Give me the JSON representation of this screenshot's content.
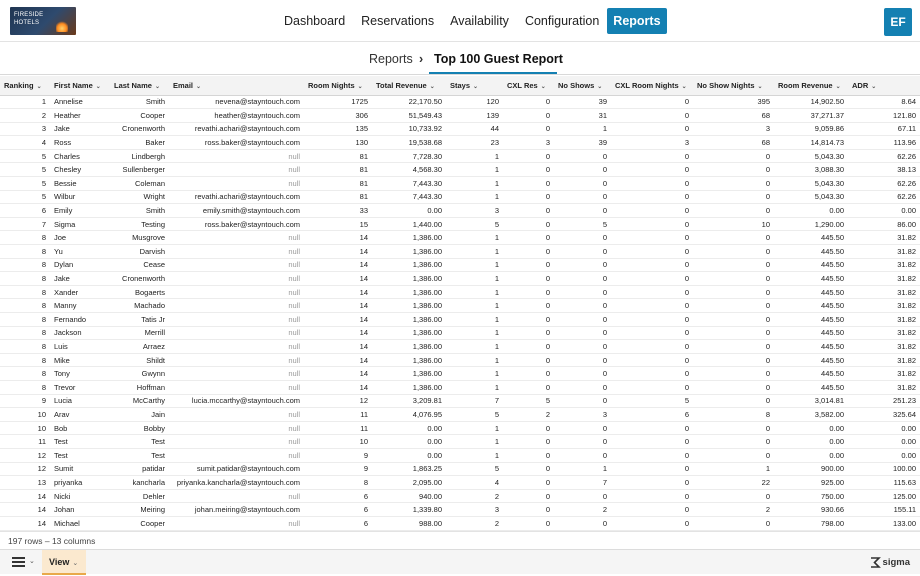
{
  "logo": {
    "line1": "FIRESIDE",
    "line2": "HOTELS"
  },
  "nav": [
    {
      "label": "Dashboard",
      "active": false
    },
    {
      "label": "Reservations",
      "active": false
    },
    {
      "label": "Availability",
      "active": false
    },
    {
      "label": "Configuration",
      "active": false
    },
    {
      "label": "Reports",
      "active": true
    }
  ],
  "user": {
    "initials": "EF"
  },
  "breadcrumb": {
    "parent": "Reports",
    "separator": "›",
    "current": "Top 100 Guest Report"
  },
  "table": {
    "columns": [
      {
        "label": "Ranking",
        "align": "left"
      },
      {
        "label": "First Name",
        "align": "left"
      },
      {
        "label": "Last Name",
        "align": "left"
      },
      {
        "label": "Email",
        "align": "left"
      },
      {
        "label": "Room Nights",
        "align": "left"
      },
      {
        "label": "Total Revenue",
        "align": "left"
      },
      {
        "label": "Stays",
        "align": "left"
      },
      {
        "label": "CXL Res",
        "align": "left"
      },
      {
        "label": "No Shows",
        "align": "left"
      },
      {
        "label": "CXL Room Nights",
        "align": "left"
      },
      {
        "label": "No Show Nights",
        "align": "left"
      },
      {
        "label": "Room Revenue",
        "align": "left"
      },
      {
        "label": "ADR",
        "align": "left"
      }
    ],
    "rows": [
      [
        "1",
        "Annelise",
        "Smith",
        "nevena@stayntouch.com",
        "1725",
        "22,170.50",
        "120",
        "0",
        "39",
        "0",
        "395",
        "14,902.50",
        "8.64"
      ],
      [
        "2",
        "Heather",
        "Cooper",
        "heather@stayntouch.com",
        "306",
        "51,549.43",
        "139",
        "0",
        "31",
        "0",
        "68",
        "37,271.37",
        "121.80"
      ],
      [
        "3",
        "Jake",
        "Cronenworth",
        "revathi.achari@stayntouch.com",
        "135",
        "10,733.92",
        "44",
        "0",
        "1",
        "0",
        "3",
        "9,059.86",
        "67.11"
      ],
      [
        "4",
        "Ross",
        "Baker",
        "ross.baker@stayntouch.com",
        "130",
        "19,538.68",
        "23",
        "3",
        "39",
        "3",
        "68",
        "14,814.73",
        "113.96"
      ],
      [
        "5",
        "Charles",
        "Lindbergh",
        "null",
        "81",
        "7,728.30",
        "1",
        "0",
        "0",
        "0",
        "0",
        "5,043.30",
        "62.26"
      ],
      [
        "5",
        "Chesley",
        "Sullenberger",
        "null",
        "81",
        "4,568.30",
        "1",
        "0",
        "0",
        "0",
        "0",
        "3,088.30",
        "38.13"
      ],
      [
        "5",
        "Bessie",
        "Coleman",
        "null",
        "81",
        "7,443.30",
        "1",
        "0",
        "0",
        "0",
        "0",
        "5,043.30",
        "62.26"
      ],
      [
        "5",
        "Wilbur",
        "Wright",
        "revathi.achari@stayntouch.com",
        "81",
        "7,443.30",
        "1",
        "0",
        "0",
        "0",
        "0",
        "5,043.30",
        "62.26"
      ],
      [
        "6",
        "Emily",
        "Smith",
        "emily.smith@stayntouch.com",
        "33",
        "0.00",
        "3",
        "0",
        "0",
        "0",
        "0",
        "0.00",
        "0.00"
      ],
      [
        "7",
        "Sigma",
        "Testing",
        "ross.baker@stayntouch.com",
        "15",
        "1,440.00",
        "5",
        "0",
        "5",
        "0",
        "10",
        "1,290.00",
        "86.00"
      ],
      [
        "8",
        "Joe",
        "Musgrove",
        "null",
        "14",
        "1,386.00",
        "1",
        "0",
        "0",
        "0",
        "0",
        "445.50",
        "31.82"
      ],
      [
        "8",
        "Yu",
        "Darvish",
        "null",
        "14",
        "1,386.00",
        "1",
        "0",
        "0",
        "0",
        "0",
        "445.50",
        "31.82"
      ],
      [
        "8",
        "Dylan",
        "Cease",
        "null",
        "14",
        "1,386.00",
        "1",
        "0",
        "0",
        "0",
        "0",
        "445.50",
        "31.82"
      ],
      [
        "8",
        "Jake",
        "Cronenworth",
        "null",
        "14",
        "1,386.00",
        "1",
        "0",
        "0",
        "0",
        "0",
        "445.50",
        "31.82"
      ],
      [
        "8",
        "Xander",
        "Bogaerts",
        "null",
        "14",
        "1,386.00",
        "1",
        "0",
        "0",
        "0",
        "0",
        "445.50",
        "31.82"
      ],
      [
        "8",
        "Manny",
        "Machado",
        "null",
        "14",
        "1,386.00",
        "1",
        "0",
        "0",
        "0",
        "0",
        "445.50",
        "31.82"
      ],
      [
        "8",
        "Fernando",
        "Tatis Jr",
        "null",
        "14",
        "1,386.00",
        "1",
        "0",
        "0",
        "0",
        "0",
        "445.50",
        "31.82"
      ],
      [
        "8",
        "Jackson",
        "Merrill",
        "null",
        "14",
        "1,386.00",
        "1",
        "0",
        "0",
        "0",
        "0",
        "445.50",
        "31.82"
      ],
      [
        "8",
        "Luis",
        "Arraez",
        "null",
        "14",
        "1,386.00",
        "1",
        "0",
        "0",
        "0",
        "0",
        "445.50",
        "31.82"
      ],
      [
        "8",
        "Mike",
        "Shildt",
        "null",
        "14",
        "1,386.00",
        "1",
        "0",
        "0",
        "0",
        "0",
        "445.50",
        "31.82"
      ],
      [
        "8",
        "Tony",
        "Gwynn",
        "null",
        "14",
        "1,386.00",
        "1",
        "0",
        "0",
        "0",
        "0",
        "445.50",
        "31.82"
      ],
      [
        "8",
        "Trevor",
        "Hoffman",
        "null",
        "14",
        "1,386.00",
        "1",
        "0",
        "0",
        "0",
        "0",
        "445.50",
        "31.82"
      ],
      [
        "9",
        "Lucia",
        "McCarthy",
        "lucia.mccarthy@stayntouch.com",
        "12",
        "3,209.81",
        "7",
        "5",
        "0",
        "5",
        "0",
        "3,014.81",
        "251.23"
      ],
      [
        "10",
        "Arav",
        "Jain",
        "null",
        "11",
        "4,076.95",
        "5",
        "2",
        "3",
        "6",
        "8",
        "3,582.00",
        "325.64"
      ],
      [
        "10",
        "Bob",
        "Bobby",
        "null",
        "11",
        "0.00",
        "1",
        "0",
        "0",
        "0",
        "0",
        "0.00",
        "0.00"
      ],
      [
        "11",
        "Test",
        "Test",
        "null",
        "10",
        "0.00",
        "1",
        "0",
        "0",
        "0",
        "0",
        "0.00",
        "0.00"
      ],
      [
        "12",
        "Test",
        "Test",
        "null",
        "9",
        "0.00",
        "1",
        "0",
        "0",
        "0",
        "0",
        "0.00",
        "0.00"
      ],
      [
        "12",
        "Sumit",
        "patidar",
        "sumit.patidar@stayntouch.com",
        "9",
        "1,863.25",
        "5",
        "0",
        "1",
        "0",
        "1",
        "900.00",
        "100.00"
      ],
      [
        "13",
        "priyanka",
        "kancharla",
        "priyanka.kancharla@stayntouch.com",
        "8",
        "2,095.00",
        "4",
        "0",
        "7",
        "0",
        "22",
        "925.00",
        "115.63"
      ],
      [
        "14",
        "Nicki",
        "Dehler",
        "null",
        "6",
        "940.00",
        "2",
        "0",
        "0",
        "0",
        "0",
        "750.00",
        "125.00"
      ],
      [
        "14",
        "Johan",
        "Meiring",
        "johan.meiring@stayntouch.com",
        "6",
        "1,339.80",
        "3",
        "0",
        "2",
        "0",
        "2",
        "930.66",
        "155.11"
      ],
      [
        "14",
        "Michael",
        "Cooper",
        "null",
        "6",
        "988.00",
        "2",
        "0",
        "0",
        "0",
        "0",
        "798.00",
        "133.00"
      ]
    ]
  },
  "status": {
    "summary": "197 rows – 13 columns"
  },
  "bottom": {
    "view_label": "View",
    "brand": "sigma"
  }
}
